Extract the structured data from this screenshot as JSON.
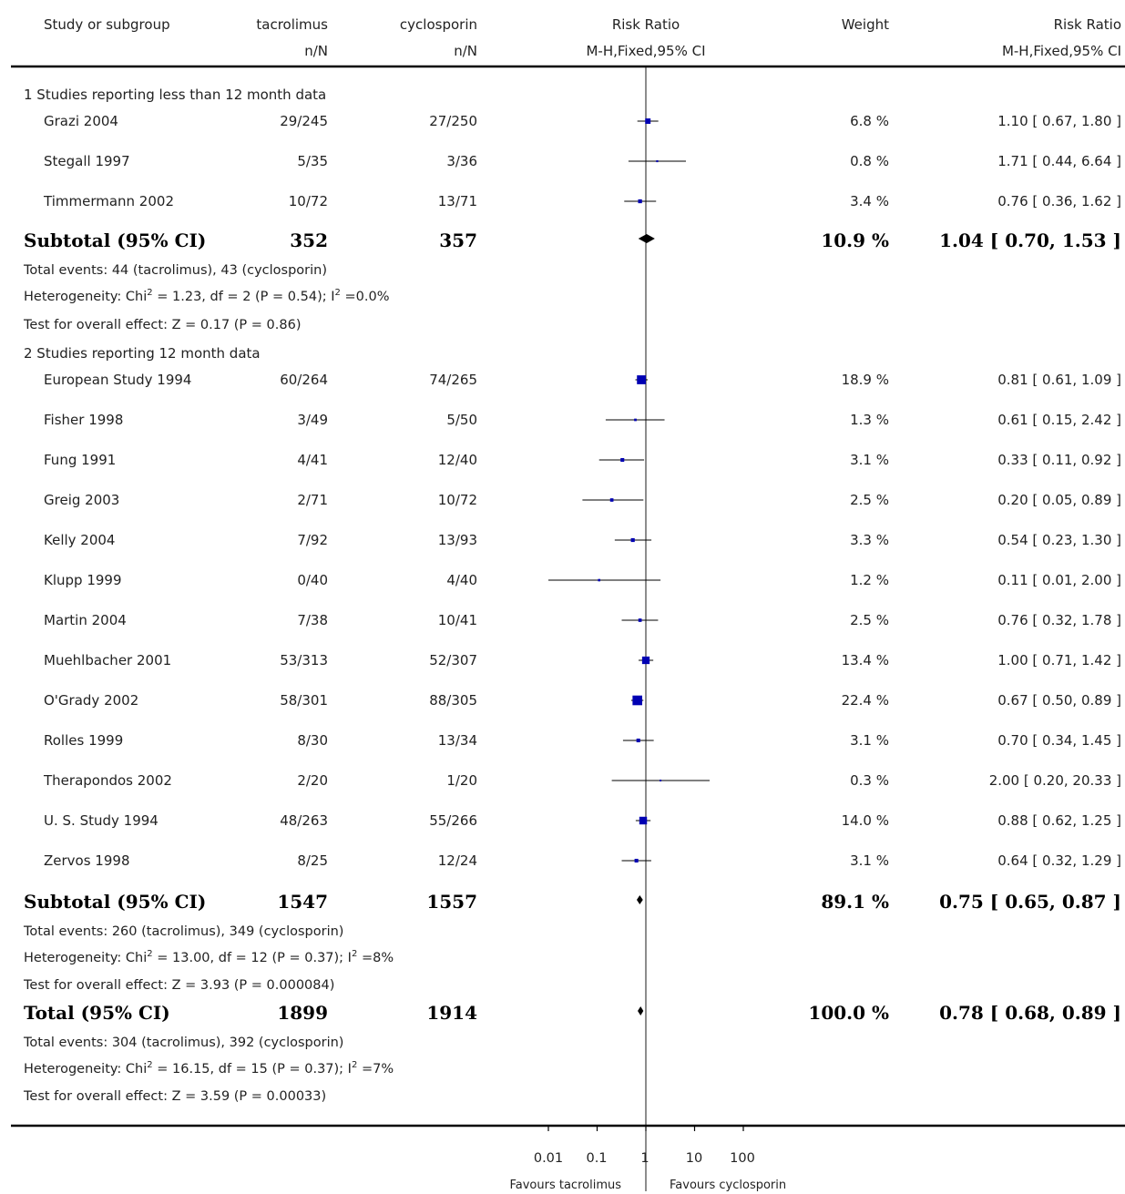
{
  "header": {
    "study": "Study or subgroup",
    "group1": "tacrolimus",
    "group1_sub": "n/N",
    "group2": "cyclosporin",
    "group2_sub": "n/N",
    "effect": "Risk Ratio",
    "effect_sub": "M-H,Fixed,95% CI",
    "weight": "Weight",
    "effect2": "Risk Ratio",
    "effect2_sub": "M-H,Fixed,95% CI"
  },
  "groups": [
    {
      "title": "1 Studies reporting less than 12 month data",
      "studies": [
        {
          "name": "Grazi 2004",
          "g1": "29/245",
          "g2": "27/250",
          "weight": "6.8 %",
          "ci": "1.10 [ 0.67, 1.80 ]"
        },
        {
          "name": "Stegall 1997",
          "g1": "5/35",
          "g2": "3/36",
          "weight": "0.8 %",
          "ci": "1.71 [ 0.44, 6.64 ]"
        },
        {
          "name": "Timmermann 2002",
          "g1": "10/72",
          "g2": "13/71",
          "weight": "3.4 %",
          "ci": "0.76 [ 0.36, 1.62 ]"
        }
      ],
      "subtotal": {
        "label": "Subtotal (95% CI)",
        "g1": "352",
        "g2": "357",
        "weight": "10.9 %",
        "ci": "1.04 [ 0.70, 1.53 ]"
      },
      "events": "Total events: 44 (tacrolimus), 43 (cyclosporin)",
      "het_a": "Heterogeneity: Chi",
      "het_b": " = 1.23, df = 2 (P = 0.54); I",
      "het_c": " =0.0%",
      "test": "Test for overall effect: Z = 0.17 (P = 0.86)"
    },
    {
      "title": "2 Studies reporting 12 month data",
      "studies": [
        {
          "name": "European Study 1994",
          "g1": "60/264",
          "g2": "74/265",
          "weight": "18.9 %",
          "ci": "0.81 [ 0.61, 1.09 ]"
        },
        {
          "name": "Fisher 1998",
          "g1": "3/49",
          "g2": "5/50",
          "weight": "1.3 %",
          "ci": "0.61 [ 0.15, 2.42 ]"
        },
        {
          "name": "Fung 1991",
          "g1": "4/41",
          "g2": "12/40",
          "weight": "3.1 %",
          "ci": "0.33 [ 0.11, 0.92 ]"
        },
        {
          "name": "Greig 2003",
          "g1": "2/71",
          "g2": "10/72",
          "weight": "2.5 %",
          "ci": "0.20 [ 0.05, 0.89 ]"
        },
        {
          "name": "Kelly 2004",
          "g1": "7/92",
          "g2": "13/93",
          "weight": "3.3 %",
          "ci": "0.54 [ 0.23, 1.30 ]"
        },
        {
          "name": "Klupp 1999",
          "g1": "0/40",
          "g2": "4/40",
          "weight": "1.2 %",
          "ci": "0.11 [ 0.01, 2.00 ]"
        },
        {
          "name": "Martin 2004",
          "g1": "7/38",
          "g2": "10/41",
          "weight": "2.5 %",
          "ci": "0.76 [ 0.32, 1.78 ]"
        },
        {
          "name": "Muehlbacher 2001",
          "g1": "53/313",
          "g2": "52/307",
          "weight": "13.4 %",
          "ci": "1.00 [ 0.71, 1.42 ]"
        },
        {
          "name": "O'Grady 2002",
          "g1": "58/301",
          "g2": "88/305",
          "weight": "22.4 %",
          "ci": "0.67 [ 0.50, 0.89 ]"
        },
        {
          "name": "Rolles 1999",
          "g1": "8/30",
          "g2": "13/34",
          "weight": "3.1 %",
          "ci": "0.70 [ 0.34, 1.45 ]"
        },
        {
          "name": "Therapondos 2002",
          "g1": "2/20",
          "g2": "1/20",
          "weight": "0.3 %",
          "ci": "2.00 [ 0.20, 20.33 ]"
        },
        {
          "name": "U. S. Study 1994",
          "g1": "48/263",
          "g2": "55/266",
          "weight": "14.0 %",
          "ci": "0.88 [ 0.62, 1.25 ]"
        },
        {
          "name": "Zervos 1998",
          "g1": "8/25",
          "g2": "12/24",
          "weight": "3.1 %",
          "ci": "0.64 [ 0.32, 1.29 ]"
        }
      ],
      "subtotal": {
        "label": "Subtotal (95% CI)",
        "g1": "1547",
        "g2": "1557",
        "weight": "89.1 %",
        "ci": "0.75 [ 0.65, 0.87 ]"
      },
      "events": "Total events: 260 (tacrolimus), 349 (cyclosporin)",
      "het_a": "Heterogeneity: Chi",
      "het_b": " = 13.00, df = 12 (P = 0.37); I",
      "het_c": " =8%",
      "test": "Test for overall effect: Z = 3.93 (P = 0.000084)"
    }
  ],
  "total": {
    "label": "Total (95% CI)",
    "g1": "1899",
    "g2": "1914",
    "weight": "100.0 %",
    "ci": "0.78 [ 0.68, 0.89 ]",
    "events": "Total events: 304 (tacrolimus), 392 (cyclosporin)",
    "het_a": "Heterogeneity: Chi",
    "het_b": " = 16.15, df = 15 (P = 0.37); I",
    "het_c": " =7%",
    "test": "Test for overall effect: Z = 3.59 (P = 0.00033)"
  },
  "sup2": "2",
  "axis": {
    "ticks": [
      "0.01",
      "0.1",
      "1",
      "10",
      "100"
    ],
    "favours_left": "Favours tacrolimus",
    "favours_right": "Favours cyclosporin"
  },
  "colors": {
    "study_marker": "#0000b3",
    "line": "#000000"
  },
  "chart_data": {
    "type": "forest",
    "scale": "log",
    "xlim": [
      0.01,
      100
    ],
    "x_ticks": [
      0.01,
      0.1,
      1,
      10,
      100
    ],
    "studies": [
      {
        "name": "Grazi 2004",
        "rr": 1.1,
        "lo": 0.67,
        "hi": 1.8,
        "weight": 6.8
      },
      {
        "name": "Stegall 1997",
        "rr": 1.71,
        "lo": 0.44,
        "hi": 6.64,
        "weight": 0.8
      },
      {
        "name": "Timmermann 2002",
        "rr": 0.76,
        "lo": 0.36,
        "hi": 1.62,
        "weight": 3.4
      },
      {
        "name": "Subtotal (95% CI)",
        "rr": 1.04,
        "lo": 0.7,
        "hi": 1.53,
        "weight": 10.9,
        "diamond": true
      },
      {
        "name": "European Study 1994",
        "rr": 0.81,
        "lo": 0.61,
        "hi": 1.09,
        "weight": 18.9
      },
      {
        "name": "Fisher 1998",
        "rr": 0.61,
        "lo": 0.15,
        "hi": 2.42,
        "weight": 1.3
      },
      {
        "name": "Fung 1991",
        "rr": 0.33,
        "lo": 0.11,
        "hi": 0.92,
        "weight": 3.1
      },
      {
        "name": "Greig 2003",
        "rr": 0.2,
        "lo": 0.05,
        "hi": 0.89,
        "weight": 2.5
      },
      {
        "name": "Kelly 2004",
        "rr": 0.54,
        "lo": 0.23,
        "hi": 1.3,
        "weight": 3.3
      },
      {
        "name": "Klupp 1999",
        "rr": 0.11,
        "lo": 0.01,
        "hi": 2.0,
        "weight": 1.2
      },
      {
        "name": "Martin 2004",
        "rr": 0.76,
        "lo": 0.32,
        "hi": 1.78,
        "weight": 2.5
      },
      {
        "name": "Muehlbacher 2001",
        "rr": 1.0,
        "lo": 0.71,
        "hi": 1.42,
        "weight": 13.4
      },
      {
        "name": "O'Grady 2002",
        "rr": 0.67,
        "lo": 0.5,
        "hi": 0.89,
        "weight": 22.4
      },
      {
        "name": "Rolles 1999",
        "rr": 0.7,
        "lo": 0.34,
        "hi": 1.45,
        "weight": 3.1
      },
      {
        "name": "Therapondos 2002",
        "rr": 2.0,
        "lo": 0.2,
        "hi": 20.33,
        "weight": 0.3
      },
      {
        "name": "U. S. Study 1994",
        "rr": 0.88,
        "lo": 0.62,
        "hi": 1.25,
        "weight": 14.0
      },
      {
        "name": "Zervos 1998",
        "rr": 0.64,
        "lo": 0.32,
        "hi": 1.29,
        "weight": 3.1
      },
      {
        "name": "Subtotal (95% CI)",
        "rr": 0.75,
        "lo": 0.65,
        "hi": 0.87,
        "weight": 89.1,
        "diamond": true
      },
      {
        "name": "Total (95% CI)",
        "rr": 0.78,
        "lo": 0.68,
        "hi": 0.89,
        "weight": 100.0,
        "diamond": true
      }
    ]
  }
}
